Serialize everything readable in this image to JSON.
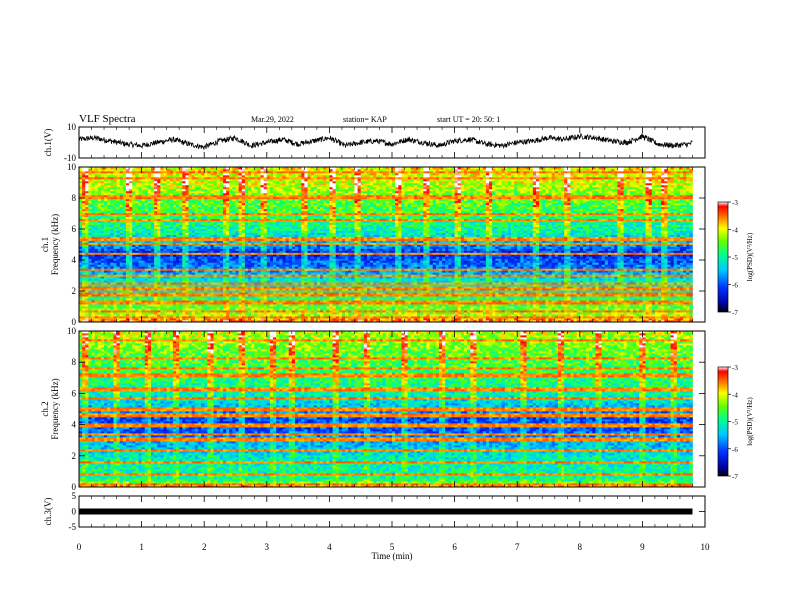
{
  "header": {
    "title": "VLF Spectra",
    "date": "Mar.29, 2022",
    "station": "station= KAP",
    "start": "start  UT =   20: 50: 1"
  },
  "chart_data": [
    {
      "type": "line",
      "panel": "ch1-waveform",
      "ylabel": "ch.1(V)",
      "ylim": [
        -10,
        10
      ],
      "yticks": [
        "10",
        "-10"
      ],
      "xlim": [
        0,
        10
      ],
      "series": [
        {
          "x": [
            0,
            0.25,
            0.5,
            0.75,
            1,
            1.25,
            1.5,
            1.75,
            2,
            2.25,
            2.5,
            2.75,
            3,
            3.25,
            3.5,
            3.75,
            4,
            4.25,
            4.5,
            4.75,
            5,
            5.25,
            5.5,
            5.75,
            6,
            6.25,
            6.5,
            6.75,
            7,
            7.25,
            7.5,
            7.75,
            8,
            8.25,
            8.5,
            8.75,
            9,
            9.25,
            9.5,
            9.75,
            9.8
          ],
          "values": [
            2,
            3,
            1,
            -1,
            -2,
            0,
            2,
            -1,
            -3,
            1,
            3,
            -2,
            0,
            2,
            -1,
            1,
            3,
            -2,
            0,
            1,
            -1,
            2,
            0,
            -2,
            1,
            2,
            -1,
            -2,
            0,
            1,
            3,
            2,
            4,
            3,
            1,
            0,
            4,
            -1,
            -2,
            -1,
            0
          ]
        }
      ]
    },
    {
      "type": "heatmap",
      "panel": "ch1-spectrogram",
      "ylabel": "ch.1\nFrequency  (kHz)",
      "ylim": [
        0,
        10
      ],
      "yticks": [
        "0",
        "2",
        "4",
        "6",
        "8",
        "10"
      ],
      "xlim": [
        0,
        9.8
      ],
      "colorbar": {
        "label": "log(PSD)(V²/Hz)",
        "ticks": [
          "-3",
          "-4",
          "-5",
          "-6",
          "-7"
        ],
        "range": [
          -7,
          -3
        ]
      },
      "frequency_profile_khz": [
        0,
        0.5,
        1,
        1.5,
        2,
        2.5,
        3,
        3.5,
        4,
        4.5,
        5,
        5.5,
        6,
        6.5,
        7,
        7.5,
        8,
        8.5,
        9,
        9.5,
        10
      ],
      "log_psd_profile": [
        -3.4,
        -4.3,
        -4.5,
        -4.8,
        -5.1,
        -5.1,
        -5.4,
        -5.8,
        -6.0,
        -6.2,
        -5.6,
        -5.3,
        -5.0,
        -4.9,
        -4.7,
        -4.6,
        -4.5,
        -4.3,
        -4.1,
        -4.0,
        -3.9
      ],
      "horizontal_lines_khz": [
        0.3,
        0.7,
        1.3,
        1.8,
        2.2,
        2.5,
        3.0,
        3.4,
        4.4,
        5.1,
        5.4,
        6.6,
        7.0,
        8.1,
        9.3,
        9.7
      ],
      "bursts_min": [
        0.1,
        0.8,
        1.25,
        1.7,
        2.35,
        2.6,
        2.95,
        3.6,
        4.05,
        4.45,
        5.1,
        5.55,
        6.05,
        6.55,
        7.3,
        7.8,
        8.65,
        9.1,
        9.35
      ]
    },
    {
      "type": "heatmap",
      "panel": "ch2-spectrogram",
      "ylabel": "ch.2\nFrequency  (kHz)",
      "ylim": [
        0,
        10
      ],
      "yticks": [
        "0",
        "2",
        "4",
        "6",
        "8",
        "10"
      ],
      "xlim": [
        0,
        9.8
      ],
      "colorbar": {
        "label": "log(PSD)(V²/Hz)",
        "ticks": [
          "-3",
          "-4",
          "-5",
          "-6",
          "-7"
        ],
        "range": [
          -7,
          -3
        ]
      },
      "frequency_profile_khz": [
        0,
        0.5,
        1,
        1.5,
        2,
        2.5,
        3,
        3.5,
        4,
        4.5,
        5,
        5.5,
        6,
        6.5,
        7,
        7.5,
        8,
        8.5,
        9,
        9.5,
        10
      ],
      "log_psd_profile": [
        -3.6,
        -4.9,
        -5.0,
        -5.1,
        -5.2,
        -5.4,
        -5.6,
        -5.9,
        -6.1,
        -6.0,
        -5.6,
        -5.3,
        -5.1,
        -4.9,
        -4.8,
        -4.7,
        -4.6,
        -4.5,
        -4.4,
        -4.3,
        -4.1
      ],
      "horizontal_lines_khz": [
        0.2,
        0.8,
        1.6,
        2.4,
        3.1,
        3.4,
        4.0,
        4.6,
        5.0,
        5.7,
        6.3,
        7.2,
        7.6,
        8.3,
        9.4
      ],
      "bursts_min": [
        0.1,
        0.6,
        1.1,
        1.55,
        2.1,
        2.6,
        3.1,
        3.4,
        4.1,
        4.6,
        5.2,
        5.8,
        6.3,
        7.1,
        7.7,
        8.3,
        9.0,
        9.5
      ]
    },
    {
      "type": "line",
      "panel": "ch3-waveform",
      "ylabel": "ch.3(V)",
      "ylim": [
        -5,
        5
      ],
      "yticks": [
        "5",
        "0",
        "-5"
      ],
      "xlim": [
        0,
        9.8
      ],
      "series": [
        {
          "x": [
            0,
            9.8
          ],
          "values": [
            0,
            0
          ]
        }
      ]
    }
  ],
  "xaxis": {
    "label": "Time  (min)",
    "ticks": [
      "0",
      "1",
      "2",
      "3",
      "4",
      "5",
      "6",
      "7",
      "8",
      "9",
      "10"
    ],
    "range": [
      0,
      10
    ]
  }
}
